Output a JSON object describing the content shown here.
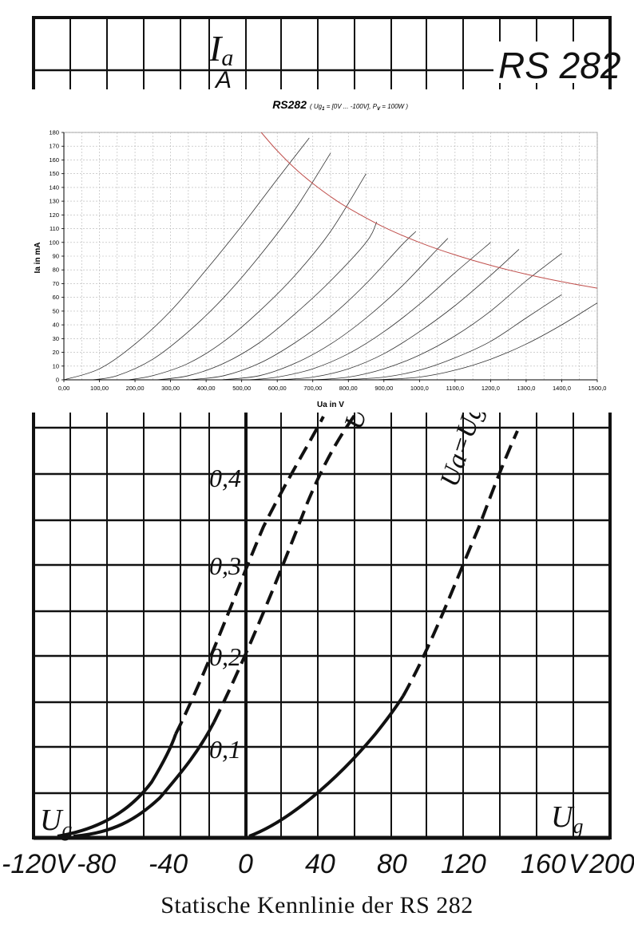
{
  "scan": {
    "ia_label": "I",
    "ia_sub": "a",
    "unit_mark": "A",
    "tube_label": "RS 282",
    "ug_left": "U",
    "ug_left_sub": "g",
    "ug_right": "U",
    "ug_right_sub": "g",
    "curve_label_a": "Ua",
    "curve_label_b": "Ua=Ug",
    "y_ticks": [
      "0,1",
      "0,2",
      "0,3",
      "0,4"
    ],
    "x_ticks": [
      "-120",
      "V",
      "-80",
      "-40",
      "0",
      "40",
      "80",
      "120",
      "160",
      "V",
      "200"
    ],
    "caption": "Statische Kennlinie der RS 282",
    "colors": {
      "ink": "#111111",
      "paper": "#ffffff"
    }
  },
  "chart_data": {
    "type": "line",
    "title": "RS282",
    "subtitle_parts": [
      "( Ug",
      "1",
      " = [0V ... -100V], P",
      "V",
      " = 100W )"
    ],
    "xlabel": "Ua in V",
    "ylabel": "Ia in mA",
    "xlim": [
      0,
      1500
    ],
    "ylim": [
      0,
      180
    ],
    "x_tick_labels": [
      "0,00",
      "100,00",
      "200,00",
      "300,00",
      "400,00",
      "500,00",
      "600,00",
      "700,00",
      "800,00",
      "900,00",
      "1000,0",
      "1100,0",
      "1200,0",
      "1300,0",
      "1400,0",
      "1500,0"
    ],
    "y_tick_labels": [
      "0",
      "10",
      "20",
      "30",
      "40",
      "50",
      "60",
      "70",
      "80",
      "90",
      "100",
      "110",
      "120",
      "130",
      "140",
      "150",
      "160",
      "170",
      "180"
    ],
    "grid": true,
    "colors": {
      "curves": "#333333",
      "power_limit": "#c0504d",
      "grid": "#b5b5b5"
    },
    "series": [
      {
        "values": [
          [
            0,
            0
          ],
          [
            100,
            8
          ],
          [
            200,
            26
          ],
          [
            300,
            50
          ],
          [
            400,
            80
          ],
          [
            500,
            112
          ],
          [
            600,
            146
          ],
          [
            690,
            176
          ]
        ]
      },
      {
        "values": [
          [
            80,
            0
          ],
          [
            150,
            3
          ],
          [
            250,
            15
          ],
          [
            350,
            35
          ],
          [
            450,
            60
          ],
          [
            550,
            90
          ],
          [
            650,
            124
          ],
          [
            750,
            165
          ]
        ]
      },
      {
        "values": [
          [
            180,
            0
          ],
          [
            250,
            3
          ],
          [
            350,
            12
          ],
          [
            450,
            28
          ],
          [
            550,
            50
          ],
          [
            650,
            76
          ],
          [
            750,
            108
          ],
          [
            850,
            150
          ]
        ]
      },
      {
        "values": [
          [
            260,
            0
          ],
          [
            350,
            3
          ],
          [
            450,
            12
          ],
          [
            550,
            27
          ],
          [
            650,
            48
          ],
          [
            750,
            72
          ],
          [
            850,
            100
          ],
          [
            880,
            115
          ]
        ]
      },
      {
        "values": [
          [
            350,
            0
          ],
          [
            450,
            3
          ],
          [
            550,
            12
          ],
          [
            650,
            27
          ],
          [
            750,
            46
          ],
          [
            850,
            70
          ],
          [
            950,
            98
          ],
          [
            990,
            108
          ]
        ]
      },
      {
        "values": [
          [
            440,
            0
          ],
          [
            550,
            3
          ],
          [
            650,
            12
          ],
          [
            750,
            26
          ],
          [
            850,
            45
          ],
          [
            950,
            68
          ],
          [
            1050,
            95
          ],
          [
            1080,
            103
          ]
        ]
      },
      {
        "values": [
          [
            520,
            0
          ],
          [
            600,
            2
          ],
          [
            700,
            8
          ],
          [
            800,
            19
          ],
          [
            900,
            35
          ],
          [
            1000,
            55
          ],
          [
            1100,
            78
          ],
          [
            1200,
            100
          ]
        ]
      },
      {
        "values": [
          [
            600,
            0
          ],
          [
            700,
            2
          ],
          [
            800,
            8
          ],
          [
            900,
            19
          ],
          [
            1000,
            35
          ],
          [
            1100,
            54
          ],
          [
            1200,
            76
          ],
          [
            1280,
            95
          ]
        ]
      },
      {
        "values": [
          [
            700,
            0
          ],
          [
            800,
            2
          ],
          [
            900,
            8
          ],
          [
            1000,
            18
          ],
          [
            1100,
            32
          ],
          [
            1200,
            50
          ],
          [
            1300,
            72
          ],
          [
            1400,
            92
          ]
        ]
      },
      {
        "values": [
          [
            780,
            0
          ],
          [
            900,
            2
          ],
          [
            1000,
            7
          ],
          [
            1100,
            16
          ],
          [
            1200,
            28
          ],
          [
            1300,
            45
          ],
          [
            1400,
            62
          ]
        ]
      },
      {
        "values": [
          [
            880,
            0
          ],
          [
            1000,
            2
          ],
          [
            1100,
            7
          ],
          [
            1200,
            15
          ],
          [
            1300,
            26
          ],
          [
            1400,
            40
          ],
          [
            1500,
            56
          ]
        ]
      }
    ],
    "power_limit": {
      "x": [
        555,
        600,
        650,
        700,
        750,
        800,
        900,
        1000,
        1100,
        1200,
        1300,
        1400,
        1500
      ],
      "y": [
        180,
        166.7,
        153.8,
        142.9,
        133.3,
        125,
        111.1,
        100,
        90.9,
        83.3,
        76.9,
        71.4,
        66.7
      ]
    }
  }
}
